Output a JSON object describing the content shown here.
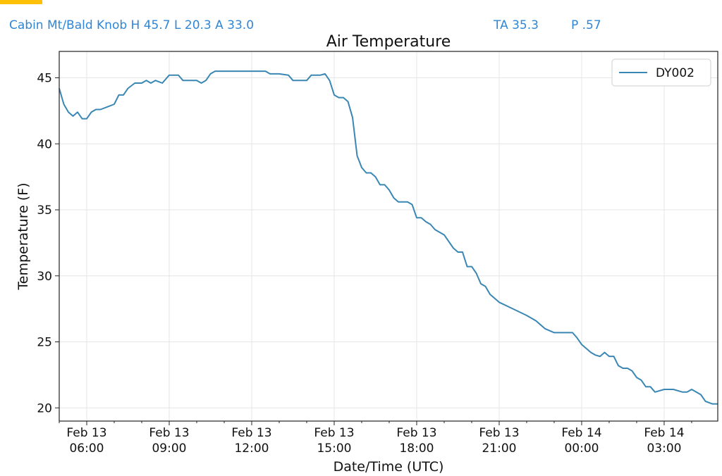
{
  "header": {
    "station_summary": "Cabin Mt/Bald Knob H 45.7 L 20.3 A 33.0",
    "ta": "TA 35.3",
    "p": "P .57",
    "accent_color": "#ffc107",
    "text_color": "#2f86d6"
  },
  "chart_data": {
    "type": "line",
    "title": "Air Temperature",
    "xlabel": "Date/Time (UTC)",
    "ylabel": "Temperature (F)",
    "ylim": [
      19,
      47
    ],
    "xlim": [
      "2026-02-13T05:00",
      "2026-02-14T04:57"
    ],
    "grid": true,
    "legend": "top-right",
    "y_ticks": [
      20,
      25,
      30,
      35,
      40,
      45
    ],
    "x_ticks": [
      {
        "at": "2026-02-13T06:00",
        "date": "Feb 13",
        "time": "06:00"
      },
      {
        "at": "2026-02-13T09:00",
        "date": "Feb 13",
        "time": "09:00"
      },
      {
        "at": "2026-02-13T12:00",
        "date": "Feb 13",
        "time": "12:00"
      },
      {
        "at": "2026-02-13T15:00",
        "date": "Feb 13",
        "time": "15:00"
      },
      {
        "at": "2026-02-13T18:00",
        "date": "Feb 13",
        "time": "18:00"
      },
      {
        "at": "2026-02-13T21:00",
        "date": "Feb 13",
        "time": "21:00"
      },
      {
        "at": "2026-02-14T00:00",
        "date": "Feb 14",
        "time": "00:00"
      },
      {
        "at": "2026-02-14T03:00",
        "date": "Feb 14",
        "time": "03:00"
      }
    ],
    "series": [
      {
        "name": "DY002",
        "color": "#3a87b4",
        "x": [
          "2026-02-13T05:00",
          "2026-02-13T05:10",
          "2026-02-13T05:20",
          "2026-02-13T05:30",
          "2026-02-13T05:40",
          "2026-02-13T05:50",
          "2026-02-13T06:00",
          "2026-02-13T06:10",
          "2026-02-13T06:20",
          "2026-02-13T06:30",
          "2026-02-13T06:45",
          "2026-02-13T07:00",
          "2026-02-13T07:10",
          "2026-02-13T07:20",
          "2026-02-13T07:30",
          "2026-02-13T07:45",
          "2026-02-13T08:00",
          "2026-02-13T08:10",
          "2026-02-13T08:20",
          "2026-02-13T08:30",
          "2026-02-13T08:45",
          "2026-02-13T09:00",
          "2026-02-13T09:20",
          "2026-02-13T09:30",
          "2026-02-13T09:40",
          "2026-02-13T10:00",
          "2026-02-13T10:10",
          "2026-02-13T10:20",
          "2026-02-13T10:30",
          "2026-02-13T10:40",
          "2026-02-13T11:00",
          "2026-02-13T11:30",
          "2026-02-13T12:00",
          "2026-02-13T12:30",
          "2026-02-13T12:40",
          "2026-02-13T13:00",
          "2026-02-13T13:20",
          "2026-02-13T13:30",
          "2026-02-13T13:50",
          "2026-02-13T14:00",
          "2026-02-13T14:10",
          "2026-02-13T14:30",
          "2026-02-13T14:40",
          "2026-02-13T14:50",
          "2026-02-13T15:00",
          "2026-02-13T15:10",
          "2026-02-13T15:20",
          "2026-02-13T15:30",
          "2026-02-13T15:40",
          "2026-02-13T15:50",
          "2026-02-13T16:00",
          "2026-02-13T16:10",
          "2026-02-13T16:20",
          "2026-02-13T16:30",
          "2026-02-13T16:40",
          "2026-02-13T16:50",
          "2026-02-13T17:00",
          "2026-02-13T17:10",
          "2026-02-13T17:20",
          "2026-02-13T17:40",
          "2026-02-13T17:50",
          "2026-02-13T18:00",
          "2026-02-13T18:10",
          "2026-02-13T18:20",
          "2026-02-13T18:30",
          "2026-02-13T18:40",
          "2026-02-13T18:50",
          "2026-02-13T19:00",
          "2026-02-13T19:10",
          "2026-02-13T19:20",
          "2026-02-13T19:30",
          "2026-02-13T19:40",
          "2026-02-13T19:50",
          "2026-02-13T20:00",
          "2026-02-13T20:10",
          "2026-02-13T20:20",
          "2026-02-13T20:30",
          "2026-02-13T20:40",
          "2026-02-13T21:00",
          "2026-02-13T21:30",
          "2026-02-13T22:00",
          "2026-02-13T22:20",
          "2026-02-13T22:40",
          "2026-02-13T23:00",
          "2026-02-13T23:20",
          "2026-02-13T23:30",
          "2026-02-13T23:40",
          "2026-02-13T23:50",
          "2026-02-14T00:00",
          "2026-02-14T00:10",
          "2026-02-14T00:20",
          "2026-02-14T00:30",
          "2026-02-14T00:40",
          "2026-02-14T00:50",
          "2026-02-14T01:00",
          "2026-02-14T01:10",
          "2026-02-14T01:20",
          "2026-02-14T01:30",
          "2026-02-14T01:40",
          "2026-02-14T01:50",
          "2026-02-14T02:00",
          "2026-02-14T02:10",
          "2026-02-14T02:20",
          "2026-02-14T02:30",
          "2026-02-14T02:40",
          "2026-02-14T03:00",
          "2026-02-14T03:20",
          "2026-02-14T03:40",
          "2026-02-14T03:50",
          "2026-02-14T04:00",
          "2026-02-14T04:10",
          "2026-02-14T04:20",
          "2026-02-14T04:30",
          "2026-02-14T04:45",
          "2026-02-14T04:57"
        ],
        "values": [
          44.2,
          43.0,
          42.4,
          42.1,
          42.4,
          41.9,
          41.9,
          42.4,
          42.6,
          42.6,
          42.8,
          43.0,
          43.7,
          43.7,
          44.2,
          44.6,
          44.6,
          44.8,
          44.6,
          44.8,
          44.6,
          45.2,
          45.2,
          44.8,
          44.8,
          44.8,
          44.6,
          44.8,
          45.3,
          45.5,
          45.5,
          45.5,
          45.5,
          45.5,
          45.3,
          45.3,
          45.2,
          44.8,
          44.8,
          44.8,
          45.2,
          45.2,
          45.3,
          44.8,
          43.7,
          43.5,
          43.5,
          43.2,
          42.0,
          39.1,
          38.2,
          37.8,
          37.8,
          37.5,
          36.9,
          36.9,
          36.5,
          35.9,
          35.6,
          35.6,
          35.4,
          34.4,
          34.4,
          34.1,
          33.9,
          33.5,
          33.3,
          33.1,
          32.6,
          32.1,
          31.8,
          31.8,
          30.7,
          30.7,
          30.2,
          29.4,
          29.2,
          28.6,
          28.0,
          27.5,
          27.0,
          26.6,
          26.0,
          25.7,
          25.7,
          25.7,
          25.7,
          25.3,
          24.8,
          24.5,
          24.2,
          24.0,
          23.9,
          24.2,
          23.9,
          23.9,
          23.2,
          23.0,
          23.0,
          22.8,
          22.3,
          22.1,
          21.6,
          21.6,
          21.2,
          21.4,
          21.4,
          21.2,
          21.2,
          21.4,
          21.2,
          21.0,
          20.5,
          20.3,
          20.3
        ]
      }
    ]
  }
}
